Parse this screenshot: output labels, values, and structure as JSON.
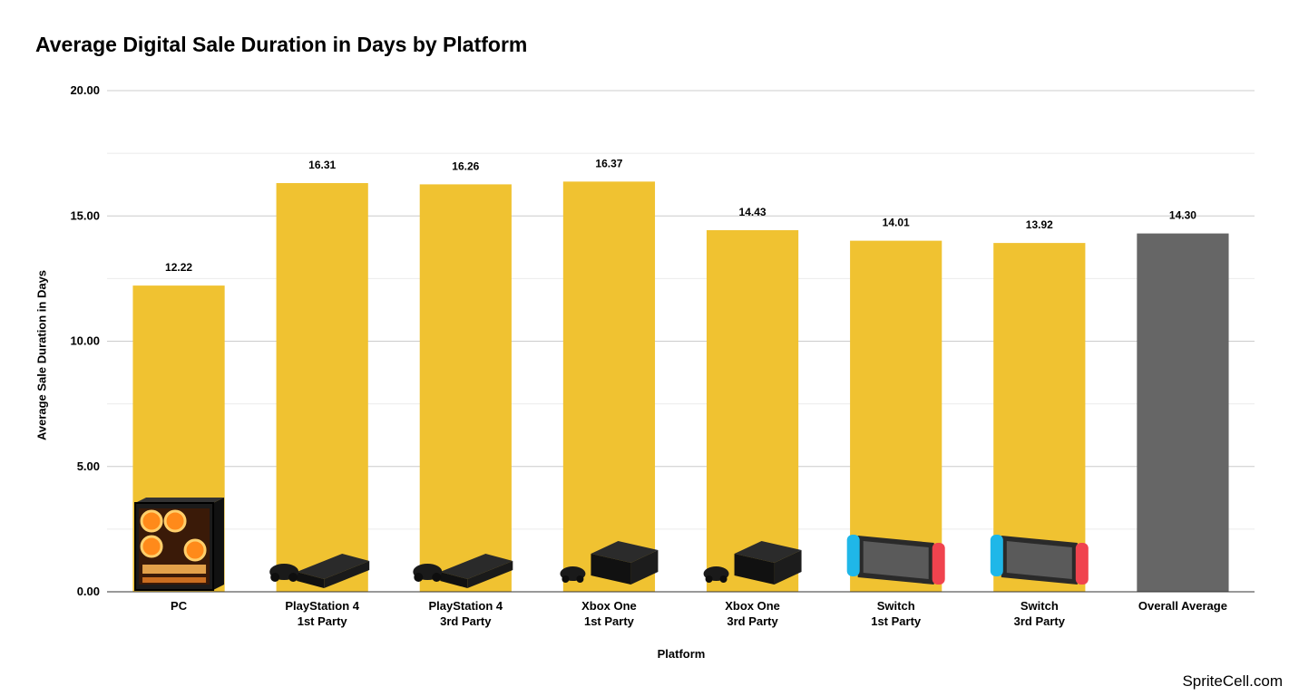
{
  "chart_data": {
    "type": "bar",
    "title": "Average Digital Sale Duration in Days by Platform",
    "xlabel": "Platform",
    "ylabel": "Average Sale Duration in Days",
    "ylim": [
      0,
      20
    ],
    "yticks": [
      0,
      5,
      10,
      15,
      20
    ],
    "ytick_labels": [
      "0.00",
      "5.00",
      "10.00",
      "15.00",
      "20.00"
    ],
    "grid": true,
    "categories": [
      [
        "PC"
      ],
      [
        "PlayStation 4",
        "1st Party"
      ],
      [
        "PlayStation 4",
        "3rd Party"
      ],
      [
        "Xbox One",
        "1st Party"
      ],
      [
        "Xbox One",
        "3rd Party"
      ],
      [
        "Switch",
        "1st Party"
      ],
      [
        "Switch",
        "3rd Party"
      ],
      [
        "Overall Average"
      ]
    ],
    "values": [
      12.22,
      16.31,
      16.26,
      16.37,
      14.43,
      14.01,
      13.92,
      14.3
    ],
    "data_labels": [
      "12.22",
      "16.31",
      "16.26",
      "16.37",
      "14.43",
      "14.01",
      "13.92",
      "14.30"
    ],
    "bar_colors": [
      "#f0c231",
      "#f0c231",
      "#f0c231",
      "#f0c231",
      "#f0c231",
      "#f0c231",
      "#f0c231",
      "#666666"
    ],
    "bar_icons": [
      "pc-tower-icon",
      "playstation-4-console-icon",
      "playstation-4-console-icon",
      "xbox-one-console-icon",
      "xbox-one-console-icon",
      "nintendo-switch-icon",
      "nintendo-switch-icon",
      ""
    ]
  },
  "watermark": "SpriteCell.com"
}
